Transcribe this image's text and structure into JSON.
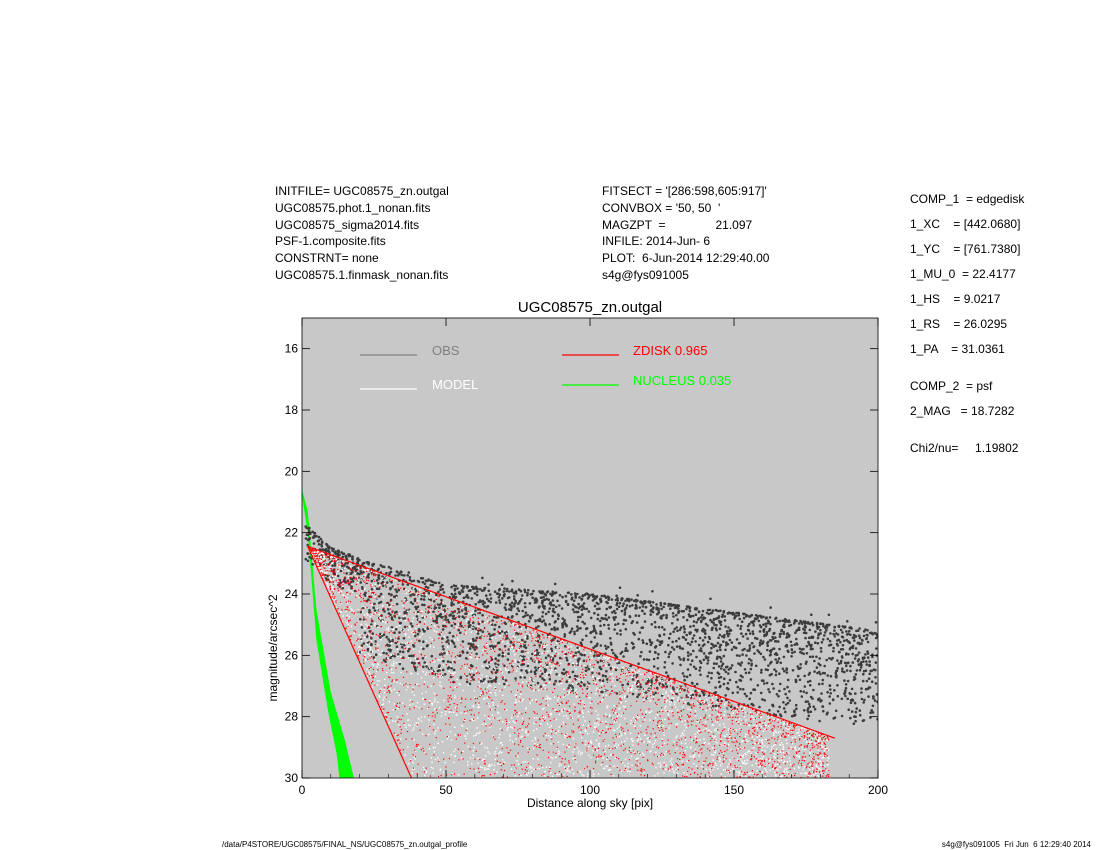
{
  "header_left": [
    "INITFILE= UGC08575_zn.outgal",
    "UGC08575.phot.1_nonan.fits",
    "UGC08575_sigma2014.fits",
    "PSF-1.composite.fits",
    "CONSTRNT= none",
    "UGC08575.1.finmask_nonan.fits"
  ],
  "header_mid": [
    "FITSECT = '[286:598,605:917]'",
    "CONVBOX = '50, 50  '",
    "MAGZPT  =               21.097",
    "INFILE: 2014-Jun- 6",
    "PLOT:  6-Jun-2014 12:29:40.00",
    "s4g@fys091005"
  ],
  "components": [
    "COMP_1  = edgedisk",
    "1_XC    = [442.0680]",
    "1_YC    = [761.7380]",
    "1_MU_0  = 22.4177",
    "1_HS    = 9.0217",
    "1_RS    = 26.0295",
    "1_PA    = 31.0361",
    "COMP_2  = psf",
    "2_MAG   = 18.7282",
    "Chi2/nu=     1.19802"
  ],
  "footer": {
    "left": "/data/P4STORE/UGC08575/FINAL_NS/UGC08575_zn.outgal_profile",
    "right": "s4g@fys091005  Fri Jun  6 12:29:40 2014"
  },
  "chart_data": {
    "type": "scatter",
    "title": "UGC08575_zn.outgal",
    "xlabel": "Distance along sky [pix]",
    "ylabel": "magnitude/arcsec^2",
    "xlim": [
      0,
      200
    ],
    "ylim": [
      30,
      15
    ],
    "y_inverted": true,
    "x_ticks": [
      0,
      50,
      100,
      150,
      200
    ],
    "y_ticks": [
      16,
      18,
      20,
      22,
      24,
      26,
      28,
      30
    ],
    "background_color": "#c8c8c8",
    "legend": [
      {
        "label": "OBS",
        "color": "#808080"
      },
      {
        "label": "MODEL",
        "color": "#ffffff"
      },
      {
        "label": "ZDISK  0.965",
        "color": "#ff0000"
      },
      {
        "label": "NUCLEUS  0.035",
        "color": "#00ff00"
      }
    ],
    "series": [
      {
        "name": "OBS",
        "color": "#3c3c3c",
        "kind": "points",
        "description": "observed surface brightness, upper envelope ~22 at x=2 to ~25.2 at x=200; scatter extends downward",
        "upper_envelope": {
          "x": [
            2,
            10,
            25,
            50,
            100,
            150,
            200
          ],
          "y": [
            21.8,
            22.5,
            23.0,
            23.7,
            24.0,
            24.6,
            25.2
          ]
        }
      },
      {
        "name": "MODEL",
        "color": "#ffffff",
        "kind": "points",
        "description": "model profile points filling region from steep edge to diagonal upper edge",
        "upper_edge": {
          "x": [
            2,
            185
          ],
          "y": [
            22.45,
            28.7
          ]
        },
        "steep_edge": {
          "x": [
            2,
            38
          ],
          "y": [
            22.45,
            30
          ]
        }
      },
      {
        "name": "ZDISK  0.965",
        "color": "#ff0000",
        "kind": "points",
        "upper_edge": {
          "x": [
            2,
            185
          ],
          "y": [
            22.45,
            28.7
          ]
        },
        "steep_edge": {
          "x": [
            2,
            38
          ],
          "y": [
            22.45,
            30
          ]
        }
      },
      {
        "name": "NUCLEUS  0.035",
        "color": "#00ff00",
        "kind": "band",
        "top_edge": {
          "x": [
            0,
            2,
            5,
            10,
            15,
            18
          ],
          "y": [
            20.6,
            21.3,
            24.5,
            27.2,
            28.8,
            30
          ]
        },
        "bottom_edge": {
          "x": [
            0,
            2,
            5,
            9,
            12,
            13
          ],
          "y": [
            20.8,
            22.0,
            25.5,
            27.8,
            29.2,
            30
          ]
        }
      }
    ]
  }
}
